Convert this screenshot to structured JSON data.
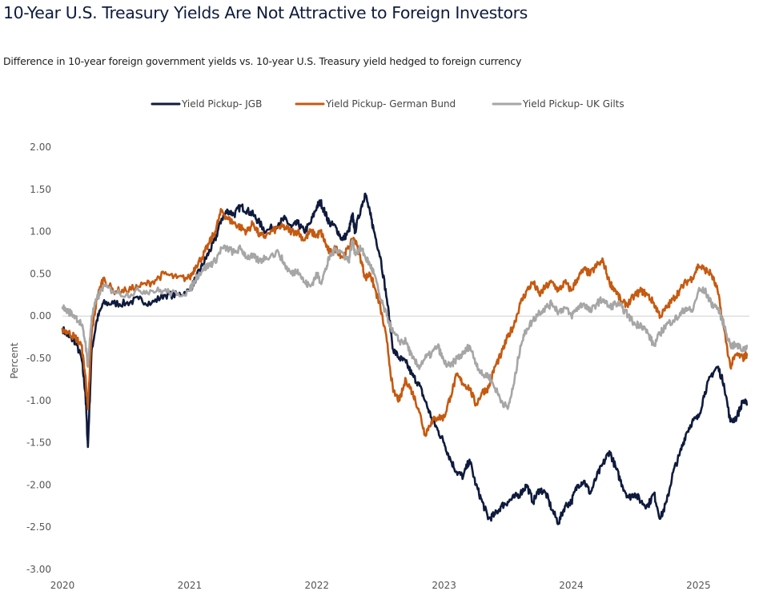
{
  "chart_data": {
    "type": "line",
    "title": "10-Year U.S. Treasury Yields Are Not Attractive to Foreign Investors",
    "subtitle": "Difference in 10-year foreign government yields vs. 10-year U.S. Treasury yield hedged to foreign currency",
    "ylabel": "Percent",
    "xlabel": "",
    "ylim": [
      -3.0,
      2.0
    ],
    "xlim": [
      2020.0,
      2025.4
    ],
    "yticks": [
      "2.00",
      "1.50",
      "1.00",
      "0.50",
      "0.00",
      "-0.50",
      "-1.00",
      "-1.50",
      "-2.00",
      "-2.50",
      "-3.00"
    ],
    "xticks": [
      "2020",
      "2021",
      "2022",
      "2023",
      "2024",
      "2025"
    ],
    "legend_position": "top-center",
    "zero_line": true,
    "series": [
      {
        "name": "Yield Pickup- JGB",
        "color": "#0f1b3d",
        "x": [
          2020.0,
          2020.05,
          2020.1,
          2020.15,
          2020.18,
          2020.2,
          2020.23,
          2020.27,
          2020.32,
          2020.4,
          2020.5,
          2020.6,
          2020.7,
          2020.8,
          2020.9,
          2021.0,
          2021.05,
          2021.1,
          2021.15,
          2021.2,
          2021.25,
          2021.3,
          2021.35,
          2021.4,
          2021.45,
          2021.5,
          2021.55,
          2021.6,
          2021.7,
          2021.75,
          2021.8,
          2021.85,
          2021.9,
          2021.95,
          2022.0,
          2022.03,
          2022.07,
          2022.1,
          2022.15,
          2022.2,
          2022.25,
          2022.28,
          2022.3,
          2022.35,
          2022.38,
          2022.42,
          2022.45,
          2022.5,
          2022.55,
          2022.6,
          2022.65,
          2022.7,
          2022.75,
          2022.8,
          2022.85,
          2022.9,
          2022.95,
          2023.0,
          2023.05,
          2023.1,
          2023.15,
          2023.2,
          2023.25,
          2023.3,
          2023.35,
          2023.4,
          2023.45,
          2023.5,
          2023.55,
          2023.6,
          2023.65,
          2023.7,
          2023.75,
          2023.8,
          2023.85,
          2023.9,
          2023.95,
          2024.0,
          2024.05,
          2024.1,
          2024.15,
          2024.2,
          2024.25,
          2024.3,
          2024.35,
          2024.4,
          2024.45,
          2024.5,
          2024.55,
          2024.6,
          2024.65,
          2024.7,
          2024.75,
          2024.8,
          2024.85,
          2024.9,
          2024.95,
          2025.0,
          2025.05,
          2025.1,
          2025.15,
          2025.2,
          2025.25,
          2025.3,
          2025.35,
          2025.38
        ],
        "values": [
          -0.15,
          -0.25,
          -0.3,
          -0.5,
          -0.9,
          -1.55,
          -0.4,
          -0.05,
          0.15,
          0.15,
          0.15,
          0.2,
          0.15,
          0.25,
          0.25,
          0.3,
          0.45,
          0.6,
          0.75,
          0.9,
          1.15,
          1.25,
          1.2,
          1.3,
          1.25,
          1.2,
          1.1,
          1.0,
          1.1,
          1.15,
          1.05,
          1.1,
          1.0,
          1.1,
          1.3,
          1.35,
          1.2,
          1.1,
          1.05,
          0.9,
          1.0,
          1.2,
          1.0,
          1.3,
          1.45,
          1.2,
          1.0,
          0.7,
          0.2,
          -0.4,
          -0.5,
          -0.55,
          -0.7,
          -0.8,
          -1.0,
          -1.2,
          -1.35,
          -1.5,
          -1.7,
          -1.85,
          -1.9,
          -1.7,
          -2.0,
          -2.2,
          -2.4,
          -2.35,
          -2.25,
          -2.2,
          -2.15,
          -2.1,
          -2.0,
          -2.2,
          -2.05,
          -2.1,
          -2.3,
          -2.45,
          -2.25,
          -2.2,
          -2.0,
          -1.95,
          -2.1,
          -1.9,
          -1.75,
          -1.6,
          -1.8,
          -2.0,
          -2.15,
          -2.1,
          -2.2,
          -2.25,
          -2.1,
          -2.4,
          -2.2,
          -1.85,
          -1.65,
          -1.4,
          -1.25,
          -1.2,
          -0.9,
          -0.7,
          -0.6,
          -0.8,
          -1.25,
          -1.2,
          -1.0,
          -1.05
        ]
      },
      {
        "name": "Yield Pickup- German Bund",
        "color": "#c55a11",
        "x": [
          2020.0,
          2020.05,
          2020.1,
          2020.15,
          2020.18,
          2020.2,
          2020.23,
          2020.27,
          2020.32,
          2020.4,
          2020.5,
          2020.6,
          2020.7,
          2020.8,
          2020.9,
          2021.0,
          2021.05,
          2021.1,
          2021.15,
          2021.2,
          2021.25,
          2021.3,
          2021.35,
          2021.4,
          2021.45,
          2021.5,
          2021.55,
          2021.6,
          2021.7,
          2021.75,
          2021.8,
          2021.85,
          2021.9,
          2021.95,
          2022.0,
          2022.03,
          2022.07,
          2022.1,
          2022.15,
          2022.2,
          2022.25,
          2022.28,
          2022.3,
          2022.35,
          2022.38,
          2022.42,
          2022.45,
          2022.5,
          2022.55,
          2022.6,
          2022.65,
          2022.7,
          2022.75,
          2022.8,
          2022.85,
          2022.9,
          2022.95,
          2023.0,
          2023.05,
          2023.1,
          2023.15,
          2023.2,
          2023.25,
          2023.3,
          2023.35,
          2023.4,
          2023.45,
          2023.5,
          2023.55,
          2023.6,
          2023.65,
          2023.7,
          2023.75,
          2023.8,
          2023.85,
          2023.9,
          2023.95,
          2024.0,
          2024.05,
          2024.1,
          2024.15,
          2024.2,
          2024.25,
          2024.3,
          2024.35,
          2024.4,
          2024.45,
          2024.5,
          2024.55,
          2024.6,
          2024.65,
          2024.7,
          2024.75,
          2024.8,
          2024.85,
          2024.9,
          2024.95,
          2025.0,
          2025.05,
          2025.1,
          2025.15,
          2025.2,
          2025.25,
          2025.3,
          2025.35,
          2025.38
        ],
        "values": [
          -0.15,
          -0.2,
          -0.25,
          -0.35,
          -0.7,
          -1.1,
          -0.2,
          0.2,
          0.45,
          0.3,
          0.3,
          0.35,
          0.4,
          0.5,
          0.45,
          0.45,
          0.6,
          0.7,
          0.85,
          1.0,
          1.25,
          1.15,
          1.1,
          1.05,
          1.0,
          1.1,
          0.95,
          0.95,
          1.05,
          1.05,
          1.0,
          1.0,
          0.9,
          1.0,
          0.95,
          1.0,
          0.85,
          0.75,
          0.8,
          0.7,
          0.8,
          0.9,
          0.9,
          0.65,
          0.45,
          0.5,
          0.35,
          0.1,
          -0.3,
          -0.9,
          -1.0,
          -0.75,
          -0.9,
          -1.1,
          -1.4,
          -1.25,
          -1.2,
          -1.2,
          -0.95,
          -0.7,
          -0.8,
          -0.85,
          -1.05,
          -0.9,
          -0.85,
          -0.6,
          -0.45,
          -0.25,
          -0.1,
          0.15,
          0.3,
          0.4,
          0.25,
          0.35,
          0.4,
          0.3,
          0.4,
          0.3,
          0.45,
          0.55,
          0.5,
          0.6,
          0.65,
          0.4,
          0.3,
          0.15,
          0.15,
          0.25,
          0.3,
          0.25,
          0.15,
          0.0,
          0.1,
          0.2,
          0.3,
          0.4,
          0.45,
          0.6,
          0.55,
          0.5,
          0.3,
          -0.15,
          -0.6,
          -0.45,
          -0.5,
          -0.45
        ]
      },
      {
        "name": "Yield Pickup- UK Gilts",
        "color": "#a6a6a6",
        "x": [
          2020.0,
          2020.05,
          2020.1,
          2020.15,
          2020.18,
          2020.2,
          2020.23,
          2020.27,
          2020.32,
          2020.4,
          2020.5,
          2020.6,
          2020.7,
          2020.8,
          2020.9,
          2021.0,
          2021.05,
          2021.1,
          2021.15,
          2021.2,
          2021.25,
          2021.3,
          2021.35,
          2021.4,
          2021.45,
          2021.5,
          2021.55,
          2021.6,
          2021.7,
          2021.75,
          2021.8,
          2021.85,
          2021.9,
          2021.95,
          2022.0,
          2022.03,
          2022.07,
          2022.1,
          2022.15,
          2022.2,
          2022.25,
          2022.28,
          2022.3,
          2022.35,
          2022.38,
          2022.42,
          2022.45,
          2022.5,
          2022.55,
          2022.6,
          2022.65,
          2022.7,
          2022.75,
          2022.8,
          2022.85,
          2022.9,
          2022.95,
          2023.0,
          2023.05,
          2023.1,
          2023.15,
          2023.2,
          2023.25,
          2023.3,
          2023.35,
          2023.4,
          2023.45,
          2023.5,
          2023.55,
          2023.6,
          2023.65,
          2023.7,
          2023.75,
          2023.8,
          2023.85,
          2023.9,
          2023.95,
          2024.0,
          2024.05,
          2024.1,
          2024.15,
          2024.2,
          2024.25,
          2024.3,
          2024.35,
          2024.4,
          2024.45,
          2024.5,
          2024.55,
          2024.6,
          2024.65,
          2024.7,
          2024.75,
          2024.8,
          2024.85,
          2024.9,
          2024.95,
          2025.0,
          2025.05,
          2025.1,
          2025.15,
          2025.2,
          2025.25,
          2025.3,
          2025.35,
          2025.38
        ],
        "values": [
          0.1,
          0.05,
          0.0,
          -0.1,
          -0.3,
          -0.6,
          0.0,
          0.2,
          0.35,
          0.3,
          0.25,
          0.3,
          0.3,
          0.3,
          0.25,
          0.3,
          0.45,
          0.55,
          0.6,
          0.65,
          0.8,
          0.8,
          0.75,
          0.8,
          0.7,
          0.7,
          0.65,
          0.7,
          0.75,
          0.6,
          0.5,
          0.55,
          0.4,
          0.35,
          0.5,
          0.4,
          0.55,
          0.7,
          0.8,
          0.75,
          0.65,
          0.9,
          0.75,
          0.8,
          0.7,
          0.6,
          0.5,
          0.2,
          0.0,
          -0.2,
          -0.3,
          -0.3,
          -0.5,
          -0.6,
          -0.5,
          -0.45,
          -0.35,
          -0.55,
          -0.6,
          -0.5,
          -0.45,
          -0.35,
          -0.55,
          -0.7,
          -0.7,
          -0.85,
          -1.0,
          -1.1,
          -0.8,
          -0.35,
          -0.15,
          -0.05,
          0.05,
          0.1,
          0.15,
          0.05,
          0.1,
          0.0,
          0.1,
          0.15,
          0.05,
          0.15,
          0.2,
          0.1,
          0.15,
          0.1,
          0.0,
          -0.1,
          -0.1,
          -0.2,
          -0.35,
          -0.2,
          -0.1,
          -0.05,
          0.0,
          0.1,
          0.05,
          0.3,
          0.3,
          0.15,
          0.1,
          -0.1,
          -0.35,
          -0.35,
          -0.4,
          -0.35
        ]
      }
    ]
  }
}
